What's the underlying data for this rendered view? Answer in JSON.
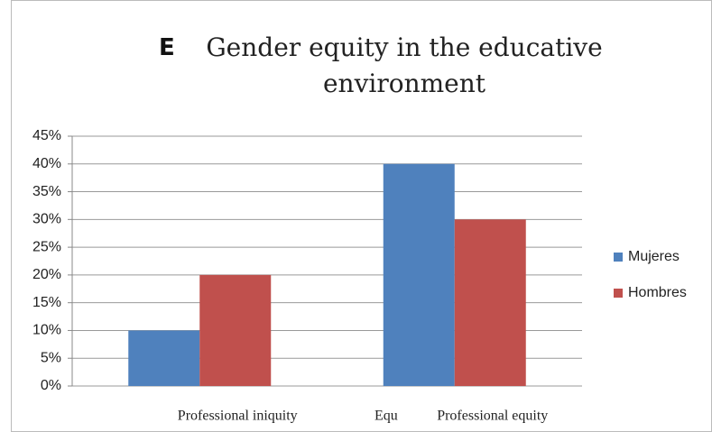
{
  "chart_data": {
    "type": "bar",
    "title_letter": "E",
    "title": "Gender equity in the educative environment",
    "annotation": "Equ",
    "categories": [
      "Professional iniquity",
      "Professional equity"
    ],
    "series": [
      {
        "name": "Mujeres",
        "color": "#4f81bd",
        "values": [
          10,
          40
        ]
      },
      {
        "name": "Hombres",
        "color": "#c0504d",
        "values": [
          20,
          30
        ]
      }
    ],
    "ylim": [
      0,
      45
    ],
    "yticks": [
      {
        "value": 0,
        "label": "0%"
      },
      {
        "value": 5,
        "label": "5%"
      },
      {
        "value": 10,
        "label": "10%"
      },
      {
        "value": 15,
        "label": "15%"
      },
      {
        "value": 20,
        "label": "20%"
      },
      {
        "value": 25,
        "label": "25%"
      },
      {
        "value": 30,
        "label": "30%"
      },
      {
        "value": 35,
        "label": "35%"
      },
      {
        "value": 40,
        "label": "40%"
      },
      {
        "value": 45,
        "label": "45%"
      }
    ],
    "grid": true,
    "legend": "right"
  }
}
